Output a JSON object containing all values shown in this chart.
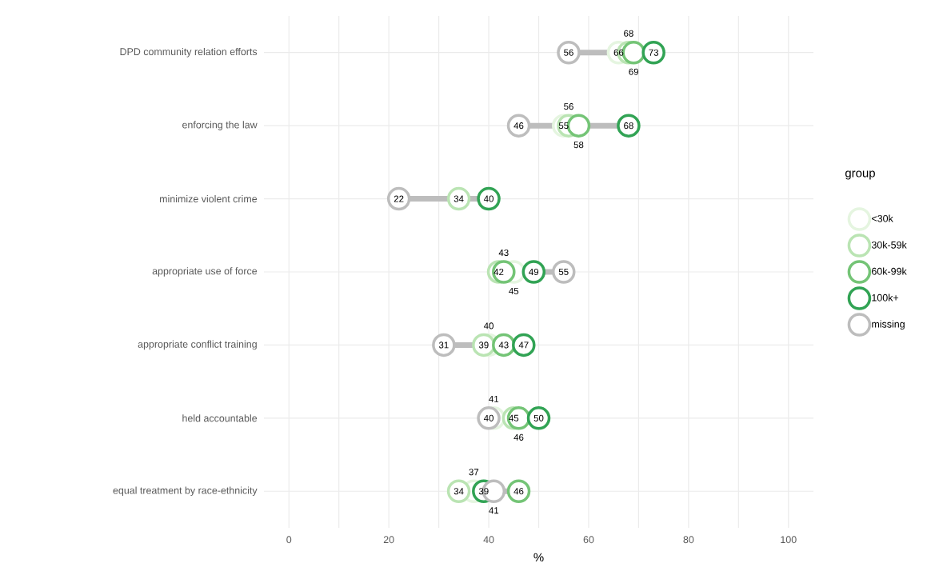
{
  "chart_data": {
    "type": "scatter",
    "orientation": "horizontal",
    "xlabel": "%",
    "legend_title": "group",
    "categories": [
      "DPD community relation efforts",
      "enforcing the law",
      "minimize violent crime",
      "appropriate use of force",
      "appropriate conflict training",
      "held accountable",
      "equal treatment by race-ethnicity"
    ],
    "series": [
      {
        "name": "<30k",
        "color": "#e5f5e0",
        "values": [
          66,
          55,
          null,
          45,
          40,
          41,
          37
        ],
        "value_labels": [
          "66",
          "55",
          null,
          "45",
          "40",
          "41",
          "37"
        ]
      },
      {
        "name": "30k-59k",
        "color": "#bae4b3",
        "values": [
          68,
          56,
          34,
          42,
          39,
          45,
          34
        ],
        "value_labels": [
          "68",
          "56",
          "34",
          "42",
          "39",
          "45",
          "34"
        ]
      },
      {
        "name": "60k-99k",
        "color": "#74c476",
        "values": [
          69,
          58,
          null,
          43,
          43,
          46,
          46
        ],
        "value_labels": [
          "69",
          "58",
          null,
          "43",
          "43",
          "46",
          "46"
        ]
      },
      {
        "name": "100k+",
        "color": "#31a354",
        "values": [
          73,
          68,
          40,
          49,
          47,
          50,
          39
        ],
        "value_labels": [
          "73",
          "68",
          "40",
          "49",
          "47",
          "50",
          "39"
        ]
      },
      {
        "name": "missing",
        "color": "#bdbdbd",
        "values": [
          56,
          46,
          22,
          55,
          31,
          40,
          41
        ],
        "value_labels": [
          "56",
          "46",
          "22",
          "55",
          "31",
          "40",
          "41"
        ]
      }
    ],
    "xlim": [
      -5,
      105
    ],
    "xticks": [
      0,
      {
        "value": 10,
        "label": null
      },
      20,
      {
        "value": 30,
        "label": null
      },
      40,
      {
        "value": 50,
        "label": null
      },
      60,
      {
        "value": 70,
        "label": null
      },
      80,
      {
        "value": 90,
        "label": null
      },
      100
    ],
    "grid": true,
    "legend": "right",
    "marker": "circle"
  }
}
